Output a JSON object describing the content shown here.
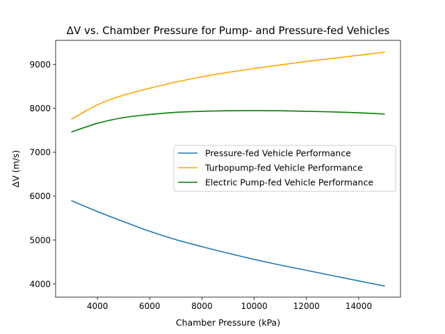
{
  "chart_data": {
    "type": "line",
    "title": "ΔV vs. Chamber Pressure for Pump- and Pressure-fed Vehicles",
    "xlabel": "Chamber Pressure (kPa)",
    "ylabel": "ΔV (m/s)",
    "xlim": [
      2400,
      15600
    ],
    "ylim": [
      3700,
      9550
    ],
    "xticks": [
      4000,
      6000,
      8000,
      10000,
      12000,
      14000
    ],
    "yticks": [
      4000,
      5000,
      6000,
      7000,
      8000,
      9000
    ],
    "grid": false,
    "legend_position": "center-right",
    "x": [
      3000,
      4000,
      5000,
      6000,
      7000,
      8000,
      9000,
      10000,
      11000,
      12000,
      13000,
      14000,
      15000
    ],
    "series": [
      {
        "name": "Pressure-fed Vehicle Performance",
        "color": "#1f77b4",
        "values": [
          5900,
          5650,
          5420,
          5200,
          5010,
          4850,
          4700,
          4560,
          4430,
          4310,
          4190,
          4070,
          3950
        ]
      },
      {
        "name": "Turbopump-fed Vehicle Performance",
        "color": "#ffa500",
        "values": [
          7750,
          8080,
          8300,
          8460,
          8600,
          8720,
          8820,
          8910,
          8990,
          9070,
          9140,
          9210,
          9280
        ]
      },
      {
        "name": "Electric Pump-fed Vehicle Performance",
        "color": "#008000",
        "values": [
          7460,
          7660,
          7790,
          7860,
          7910,
          7935,
          7945,
          7950,
          7945,
          7935,
          7920,
          7900,
          7870
        ]
      }
    ]
  }
}
